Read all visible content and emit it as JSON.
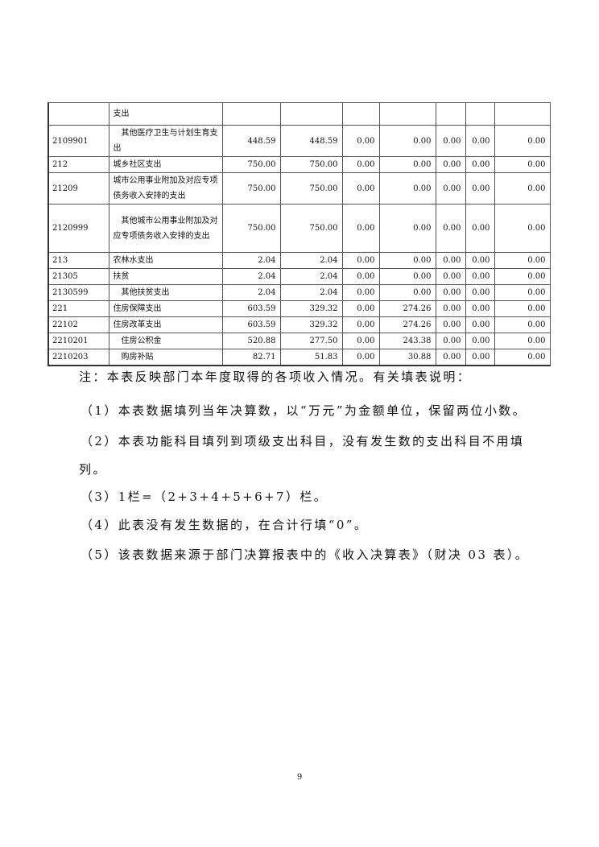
{
  "table": {
    "rows": [
      {
        "code": "",
        "name": "支出",
        "level": 2,
        "values": [
          "",
          "",
          "",
          "",
          "",
          "",
          ""
        ]
      },
      {
        "code": "2109901",
        "name": "其他医疗卫生与计划生育支出",
        "level": 3,
        "values": [
          "448.59",
          "448.59",
          "0.00",
          "0.00",
          "0.00",
          "0.00",
          "0.00"
        ]
      },
      {
        "code": "212",
        "name": "城乡社区支出",
        "level": 1,
        "values": [
          "750.00",
          "750.00",
          "0.00",
          "0.00",
          "0.00",
          "0.00",
          "0.00"
        ]
      },
      {
        "code": "21209",
        "name": "城市公用事业附加及对应专项债务收入安排的支出",
        "level": 2,
        "values": [
          "750.00",
          "750.00",
          "0.00",
          "0.00",
          "0.00",
          "0.00",
          "0.00"
        ]
      },
      {
        "code": "2120999",
        "name": "其他城市公用事业附加及对应专项债务收入安排的支出",
        "level": 3,
        "values": [
          "750.00",
          "750.00",
          "0.00",
          "0.00",
          "0.00",
          "0.00",
          "0.00"
        ]
      },
      {
        "code": "213",
        "name": "农林水支出",
        "level": 1,
        "values": [
          "2.04",
          "2.04",
          "0.00",
          "0.00",
          "0.00",
          "0.00",
          "0.00"
        ]
      },
      {
        "code": "21305",
        "name": "扶贫",
        "level": 2,
        "values": [
          "2.04",
          "2.04",
          "0.00",
          "0.00",
          "0.00",
          "0.00",
          "0.00"
        ]
      },
      {
        "code": "2130599",
        "name": "其他扶贫支出",
        "level": 3,
        "values": [
          "2.04",
          "2.04",
          "0.00",
          "0.00",
          "0.00",
          "0.00",
          "0.00"
        ]
      },
      {
        "code": "221",
        "name": "住房保障支出",
        "level": 1,
        "values": [
          "603.59",
          "329.32",
          "0.00",
          "274.26",
          "0.00",
          "0.00",
          "0.00"
        ]
      },
      {
        "code": "22102",
        "name": "住房改革支出",
        "level": 2,
        "values": [
          "603.59",
          "329.32",
          "0.00",
          "274.26",
          "0.00",
          "0.00",
          "0.00"
        ]
      },
      {
        "code": "2210201",
        "name": "住房公积金",
        "level": 3,
        "values": [
          "520.88",
          "277.50",
          "0.00",
          "243.38",
          "0.00",
          "0.00",
          "0.00"
        ]
      },
      {
        "code": "2210203",
        "name": "购房补贴",
        "level": 3,
        "values": [
          "82.71",
          "51.83",
          "0.00",
          "30.88",
          "0.00",
          "0.00",
          "0.00"
        ]
      }
    ]
  },
  "notes": {
    "intro": "注：本表反映部门本年度取得的各项收入情况。有关填表说明：",
    "item1": "（1）本表数据填列当年决算数，以“万元”为金额单位，保留两位小数。",
    "item2a": "（2）本表功能科目填列到项级支出科目，没有发生数的支出科目不用填",
    "item2b": "列。",
    "item3": "（3）1栏=（2+3+4+5+6+7）栏。",
    "item4": "（4）此表没有发生数据的，在合计行填“0”。",
    "item5": "（5）该表数据来源于部门决算报表中的《收入决算表》（财决 03 表）。"
  },
  "page_number": "9"
}
